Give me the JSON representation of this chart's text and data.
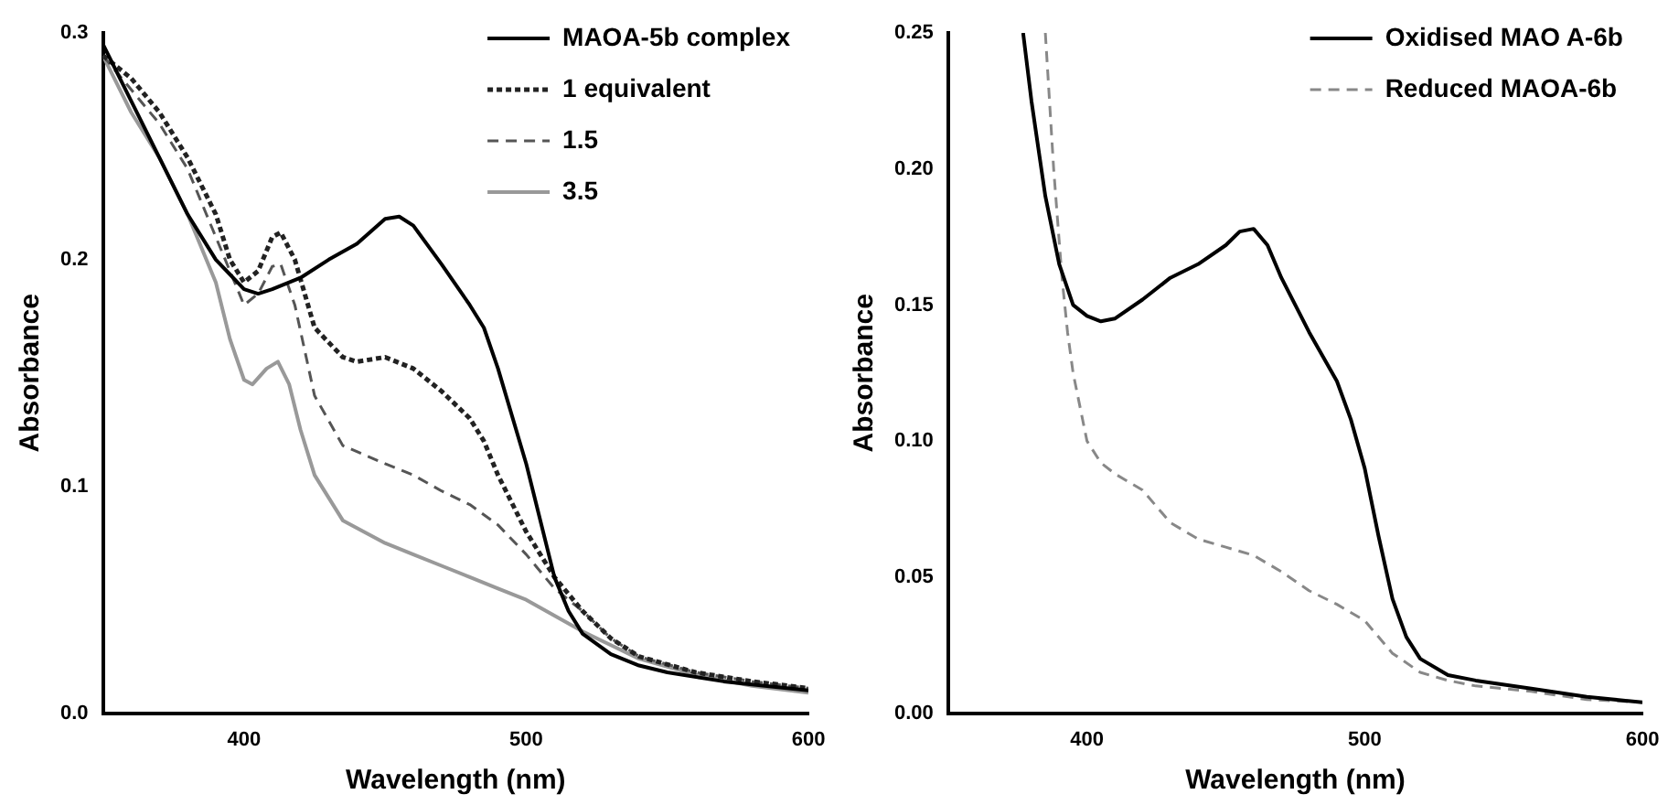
{
  "chart_data": [
    {
      "type": "line",
      "xlabel": "Wavelength (nm)",
      "ylabel": "Absorbance",
      "xlim": [
        350,
        600
      ],
      "xticks": [
        400,
        500,
        600
      ],
      "ylim": [
        0,
        0.3
      ],
      "yticks": [
        {
          "value": 0,
          "label": "0.0"
        },
        0.1,
        0.2,
        0.3
      ],
      "grid": false,
      "legend": "top right",
      "marker": "none",
      "series": [
        {
          "name": "MAOA-5b complex",
          "color": "#000000",
          "line_style": "solid",
          "x": [
            350,
            360,
            370,
            380,
            390,
            400,
            405,
            410,
            420,
            430,
            440,
            450,
            455,
            460,
            470,
            480,
            485,
            490,
            500,
            505,
            510,
            515,
            520,
            530,
            540,
            550,
            570,
            600
          ],
          "values": [
            0.295,
            0.27,
            0.245,
            0.22,
            0.2,
            0.187,
            0.185,
            0.187,
            0.192,
            0.2,
            0.207,
            0.218,
            0.219,
            0.215,
            0.198,
            0.18,
            0.17,
            0.152,
            0.11,
            0.085,
            0.06,
            0.045,
            0.035,
            0.026,
            0.021,
            0.018,
            0.014,
            0.01
          ]
        },
        {
          "name": "1 equivalent",
          "color": "#222222",
          "line_style": "dotted",
          "x": [
            350,
            360,
            370,
            380,
            390,
            395,
            400,
            405,
            410,
            413,
            418,
            425,
            435,
            440,
            450,
            460,
            470,
            480,
            485,
            490,
            500,
            510,
            520,
            530,
            540,
            560,
            580,
            600
          ],
          "values": [
            0.29,
            0.28,
            0.265,
            0.245,
            0.22,
            0.2,
            0.19,
            0.195,
            0.21,
            0.212,
            0.2,
            0.17,
            0.157,
            0.155,
            0.157,
            0.152,
            0.142,
            0.13,
            0.12,
            0.105,
            0.08,
            0.06,
            0.045,
            0.033,
            0.025,
            0.018,
            0.014,
            0.011
          ]
        },
        {
          "name": "1.5",
          "color": "#555555",
          "line_style": "dashed",
          "x": [
            350,
            370,
            380,
            390,
            400,
            405,
            410,
            413,
            418,
            425,
            435,
            450,
            460,
            470,
            480,
            490,
            500,
            510,
            520,
            530,
            540,
            560,
            580,
            600
          ],
          "values": [
            0.29,
            0.26,
            0.24,
            0.21,
            0.18,
            0.185,
            0.197,
            0.198,
            0.18,
            0.14,
            0.118,
            0.11,
            0.105,
            0.098,
            0.092,
            0.083,
            0.07,
            0.055,
            0.045,
            0.033,
            0.025,
            0.018,
            0.014,
            0.011
          ]
        },
        {
          "name": "3.5",
          "color": "#999999",
          "line_style": "solid",
          "x": [
            350,
            360,
            370,
            380,
            390,
            395,
            400,
            403,
            408,
            412,
            416,
            420,
            425,
            435,
            450,
            460,
            470,
            480,
            490,
            500,
            510,
            520,
            530,
            540,
            560,
            580,
            600
          ],
          "values": [
            0.29,
            0.265,
            0.245,
            0.22,
            0.19,
            0.165,
            0.147,
            0.145,
            0.152,
            0.155,
            0.145,
            0.125,
            0.105,
            0.085,
            0.075,
            0.07,
            0.065,
            0.06,
            0.055,
            0.05,
            0.043,
            0.036,
            0.03,
            0.024,
            0.017,
            0.012,
            0.009
          ]
        }
      ]
    },
    {
      "type": "line",
      "xlabel": "Wavelength (nm)",
      "ylabel": "Absorbance",
      "xlim": [
        350,
        600
      ],
      "xticks": [
        400,
        500,
        600
      ],
      "ylim": [
        0,
        0.25
      ],
      "yticks": [
        {
          "value": 0,
          "label": "0.00"
        },
        0.05,
        {
          "value": 0.1,
          "label": "0.10"
        },
        0.15,
        {
          "value": 0.2,
          "label": "0.20"
        },
        0.25
      ],
      "grid": false,
      "legend": "top right",
      "marker": "none",
      "series": [
        {
          "name": "Oxidised MAO A-6b",
          "color": "#000000",
          "line_style": "solid",
          "x": [
            377,
            380,
            385,
            390,
            395,
            400,
            405,
            410,
            420,
            430,
            440,
            450,
            455,
            460,
            465,
            470,
            480,
            490,
            495,
            500,
            505,
            510,
            515,
            520,
            530,
            540,
            560,
            580,
            600
          ],
          "values": [
            0.25,
            0.225,
            0.19,
            0.165,
            0.15,
            0.146,
            0.144,
            0.145,
            0.152,
            0.16,
            0.165,
            0.172,
            0.177,
            0.178,
            0.172,
            0.16,
            0.14,
            0.122,
            0.108,
            0.09,
            0.065,
            0.042,
            0.028,
            0.02,
            0.014,
            0.012,
            0.009,
            0.006,
            0.004
          ]
        },
        {
          "name": "Reduced MAOA-6b",
          "color": "#888888",
          "line_style": "dashed",
          "x": [
            385,
            388,
            391,
            393,
            395,
            400,
            405,
            410,
            420,
            430,
            440,
            450,
            460,
            470,
            480,
            490,
            500,
            505,
            510,
            520,
            530,
            540,
            560,
            580,
            600
          ],
          "values": [
            0.25,
            0.2,
            0.16,
            0.14,
            0.125,
            0.1,
            0.092,
            0.088,
            0.082,
            0.07,
            0.064,
            0.061,
            0.058,
            0.052,
            0.045,
            0.04,
            0.034,
            0.028,
            0.022,
            0.015,
            0.012,
            0.01,
            0.008,
            0.005,
            0.004
          ]
        }
      ]
    }
  ]
}
